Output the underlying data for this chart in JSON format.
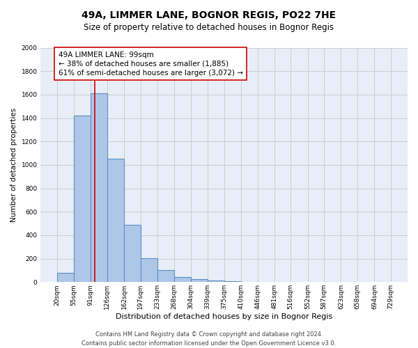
{
  "title": "49A, LIMMER LANE, BOGNOR REGIS, PO22 7HE",
  "subtitle": "Size of property relative to detached houses in Bognor Regis",
  "xlabel": "Distribution of detached houses by size in Bognor Regis",
  "ylabel": "Number of detached properties",
  "footer_line1": "Contains HM Land Registry data © Crown copyright and database right 2024.",
  "footer_line2": "Contains public sector information licensed under the Open Government Licence v3.0.",
  "annotation_line1": "49A LIMMER LANE: 99sqm",
  "annotation_line2": "← 38% of detached houses are smaller (1,885)",
  "annotation_line3": "61% of semi-detached houses are larger (3,072) →",
  "bar_edges": [
    20,
    55,
    91,
    126,
    162,
    197,
    233,
    268,
    304,
    339,
    375,
    410,
    446,
    481,
    516,
    552,
    587,
    623,
    658,
    694,
    729
  ],
  "bar_heights": [
    80,
    1420,
    1610,
    1050,
    490,
    205,
    105,
    45,
    25,
    15,
    10,
    0,
    0,
    0,
    0,
    0,
    0,
    0,
    0,
    0
  ],
  "bar_color": "#aec6e8",
  "bar_edge_color": "#5a8fc3",
  "bar_linewidth": 0.8,
  "vline_x": 99,
  "vline_color": "#cc0000",
  "vline_linewidth": 1.2,
  "ylim": [
    0,
    2000
  ],
  "yticks": [
    0,
    200,
    400,
    600,
    800,
    1000,
    1200,
    1400,
    1600,
    1800,
    2000
  ],
  "grid_color": "#cccccc",
  "axes_facecolor": "#e8eef7",
  "title_fontsize": 10,
  "subtitle_fontsize": 8.5,
  "xlabel_fontsize": 8,
  "ylabel_fontsize": 7.5,
  "tick_fontsize": 6.5,
  "annotation_fontsize": 7.5,
  "footer_fontsize": 6
}
